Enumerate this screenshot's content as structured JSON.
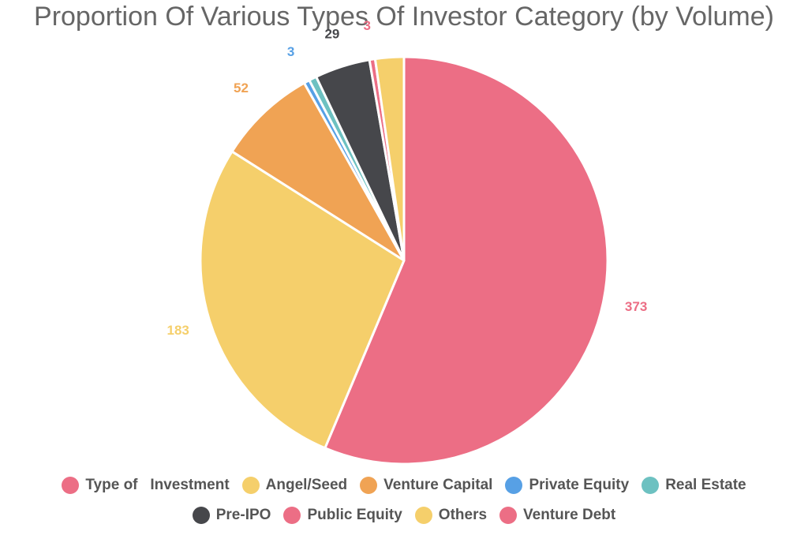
{
  "chart_data": {
    "type": "pie",
    "title": "Proportion Of Various Types Of Investor Category (by Volume)",
    "series": [
      {
        "name": "Type of   Investment",
        "value": 373,
        "color": "#ec6e85"
      },
      {
        "name": "Angel/Seed",
        "value": 183,
        "color": "#f5cf6b"
      },
      {
        "name": "Venture Capital",
        "value": 52,
        "color": "#f0a354"
      },
      {
        "name": "Private Equity",
        "value": 3,
        "color": "#57a0e5"
      },
      {
        "name": "Real Estate",
        "value": 4,
        "color": "#6dc1c1"
      },
      {
        "name": "Pre-IPO",
        "value": 29,
        "color": "#46474b"
      },
      {
        "name": "Public Equity",
        "value": 3,
        "color": "#ec6e85"
      },
      {
        "name": "Others",
        "value": 15,
        "color": "#f5cf6b"
      },
      {
        "name": "Venture Debt",
        "value": 0,
        "color": "#ec6e85"
      }
    ],
    "data_labels": [
      {
        "series": "Type of   Investment",
        "text": "373"
      },
      {
        "series": "Angel/Seed",
        "text": "183"
      },
      {
        "series": "Venture Capital",
        "text": "52"
      },
      {
        "series": "Private Equity",
        "text": "3"
      },
      {
        "series": "Pre-IPO",
        "text": "29"
      },
      {
        "series": "Public Equity",
        "text": "3"
      }
    ],
    "legend_position": "bottom"
  }
}
